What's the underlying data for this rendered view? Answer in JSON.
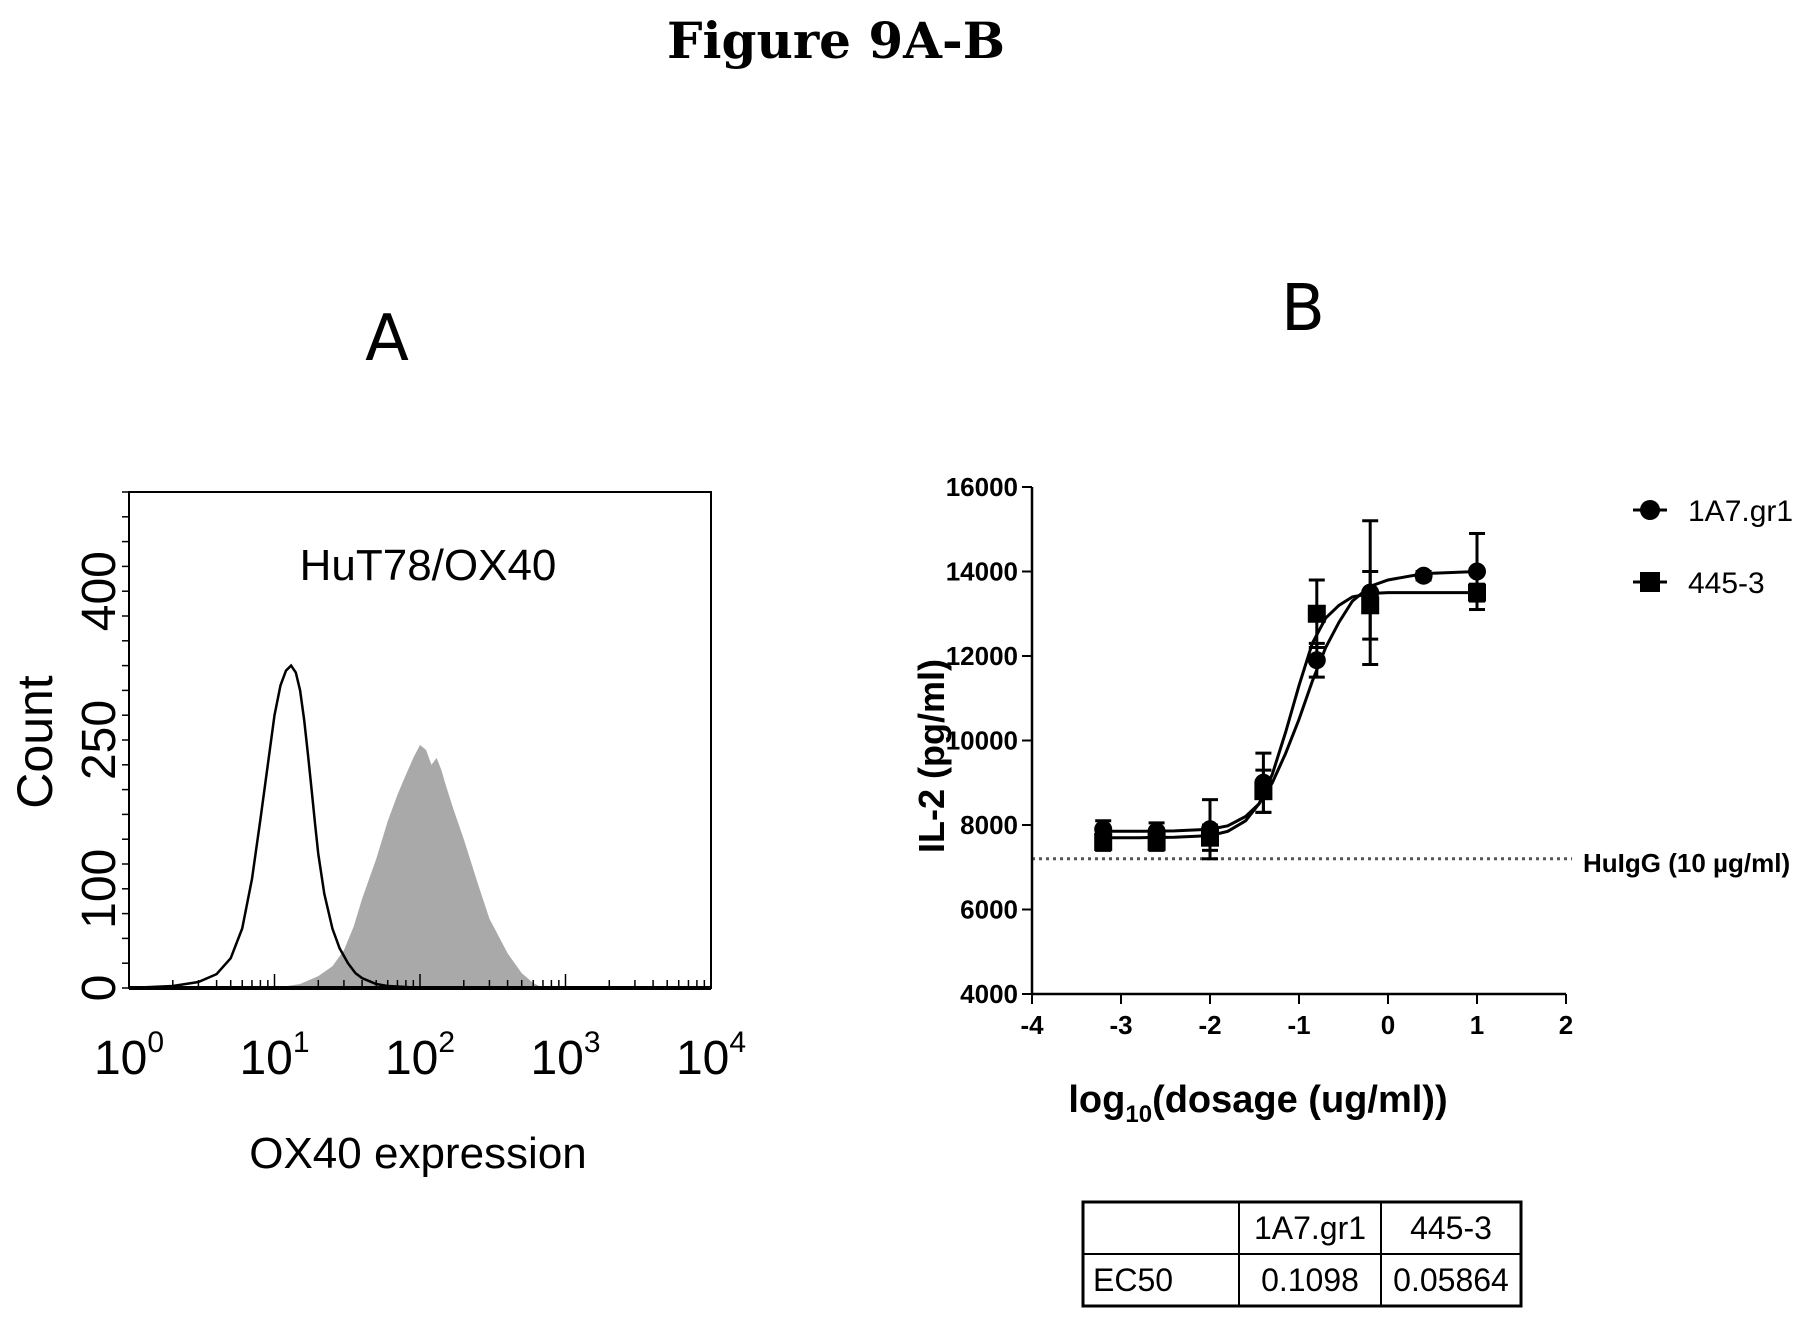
{
  "figure_title": "Figure 9A-B",
  "panels": {
    "a": {
      "label": "A"
    },
    "b": {
      "label": "B"
    }
  },
  "chart_data": [
    {
      "type": "area",
      "panel": "A",
      "title": "HuT78/OX40",
      "xlabel": "OX40 expression",
      "ylabel": "Count",
      "x_scale": "log",
      "xlim": [
        1,
        10000
      ],
      "ylim": [
        0,
        500
      ],
      "x_ticks": [
        {
          "base": "10",
          "exp": "0"
        },
        {
          "base": "10",
          "exp": "1"
        },
        {
          "base": "10",
          "exp": "2"
        },
        {
          "base": "10",
          "exp": "3"
        },
        {
          "base": "10",
          "exp": "4"
        }
      ],
      "y_ticks": [
        "0",
        "100",
        "250",
        "400"
      ],
      "y_tick_values": [
        0,
        100,
        250,
        400
      ],
      "series": [
        {
          "style": "outline",
          "color": "#000000",
          "x": [
            1,
            2,
            3,
            4,
            5,
            6,
            7,
            8,
            9,
            10,
            11,
            12,
            13,
            14,
            15,
            16,
            17,
            18,
            19,
            20,
            22,
            25,
            28,
            32,
            36,
            40,
            50,
            60,
            80,
            100,
            1000,
            10000
          ],
          "y": [
            0,
            2,
            6,
            14,
            30,
            60,
            110,
            170,
            225,
            275,
            305,
            320,
            325,
            318,
            300,
            270,
            235,
            200,
            165,
            135,
            95,
            60,
            40,
            25,
            15,
            10,
            4,
            2,
            1,
            0,
            0,
            0
          ]
        },
        {
          "style": "filled",
          "color": "#a0a0a0",
          "x": [
            10,
            15,
            20,
            25,
            30,
            35,
            40,
            50,
            60,
            70,
            80,
            90,
            100,
            110,
            120,
            130,
            140,
            150,
            170,
            200,
            250,
            300,
            400,
            500,
            600,
            700,
            10000
          ],
          "y": [
            0,
            4,
            12,
            22,
            38,
            62,
            90,
            130,
            168,
            195,
            215,
            232,
            245,
            240,
            225,
            232,
            220,
            205,
            180,
            150,
            105,
            70,
            35,
            15,
            5,
            0,
            0
          ]
        }
      ]
    },
    {
      "type": "line",
      "panel": "B",
      "xlabel": "log",
      "xlabel_sub": "10",
      "xlabel_tail": "(dosage (ug/ml))",
      "ylabel": "IL-2 (pg/ml)",
      "xlim": [
        -4,
        2
      ],
      "ylim": [
        4000,
        16000
      ],
      "x_ticks": [
        "-4",
        "-3",
        "-2",
        "-1",
        "0",
        "1",
        "2"
      ],
      "y_ticks": [
        "4000",
        "6000",
        "8000",
        "10000",
        "12000",
        "14000",
        "16000"
      ],
      "series": [
        {
          "name": "1A7.gr1",
          "marker": "circle",
          "x": [
            -3.2,
            -2.6,
            -2.0,
            -1.4,
            -0.8,
            -0.2,
            0.4,
            1.0
          ],
          "y": [
            7900,
            7850,
            7900,
            9000,
            11900,
            13500,
            13900,
            14000
          ],
          "err": [
            200,
            200,
            700,
            700,
            400,
            1700,
            100,
            900
          ],
          "fit_x": [
            -3.2,
            -2.8,
            -2.4,
            -2.0,
            -1.8,
            -1.6,
            -1.45,
            -1.3,
            -1.15,
            -1.0,
            -0.85,
            -0.7,
            -0.55,
            -0.4,
            -0.2,
            0.0,
            0.4,
            1.0
          ],
          "fit_y": [
            7850,
            7850,
            7860,
            7900,
            7980,
            8200,
            8500,
            9000,
            9700,
            10500,
            11400,
            12200,
            12800,
            13300,
            13650,
            13800,
            13950,
            14000
          ]
        },
        {
          "name": "445-3",
          "marker": "square",
          "x": [
            -3.2,
            -2.6,
            -2.0,
            -1.4,
            -0.8,
            -0.2,
            1.0
          ],
          "y": [
            7600,
            7600,
            7700,
            8800,
            13000,
            13200,
            13500
          ],
          "err": [
            200,
            200,
            300,
            500,
            800,
            800,
            200
          ],
          "fit_x": [
            -3.2,
            -2.8,
            -2.4,
            -2.0,
            -1.8,
            -1.6,
            -1.45,
            -1.3,
            -1.15,
            -1.0,
            -0.85,
            -0.7,
            -0.55,
            -0.4,
            -0.2,
            0.0,
            1.0
          ],
          "fit_y": [
            7700,
            7700,
            7710,
            7750,
            7850,
            8100,
            8500,
            9200,
            10200,
            11300,
            12300,
            12900,
            13200,
            13400,
            13480,
            13500,
            13500
          ]
        }
      ],
      "reference_line": {
        "label": "HuIgG (10 µg/ml)",
        "y": 7200
      },
      "table": {
        "header": [
          "",
          "1A7.gr1",
          "445-3"
        ],
        "rows": [
          [
            "EC50",
            "0.1098",
            "0.05864"
          ]
        ]
      }
    }
  ]
}
